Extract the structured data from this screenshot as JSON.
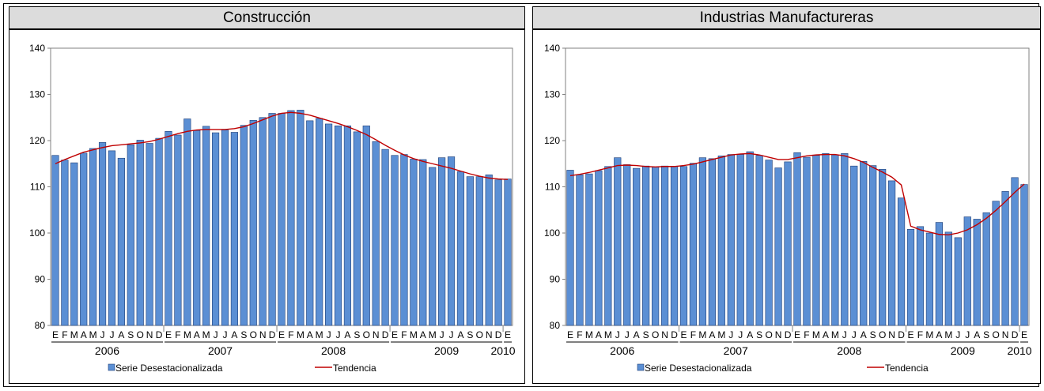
{
  "chart_data": [
    {
      "type": "bar",
      "title": "Construcción",
      "ylim": [
        80,
        140
      ],
      "yticks": [
        80,
        90,
        100,
        110,
        120,
        130,
        140
      ],
      "month_labels": [
        "E",
        "F",
        "M",
        "A",
        "M",
        "J",
        "J",
        "A",
        "S",
        "O",
        "N",
        "D",
        "E",
        "F",
        "M",
        "A",
        "M",
        "J",
        "J",
        "A",
        "S",
        "O",
        "N",
        "D",
        "E",
        "F",
        "M",
        "A",
        "M",
        "J",
        "J",
        "A",
        "S",
        "O",
        "N",
        "D",
        "E",
        "F",
        "M",
        "A",
        "M",
        "J",
        "J",
        "A",
        "S",
        "O",
        "N",
        "D",
        "E"
      ],
      "year_labels": [
        "2006",
        "2007",
        "2008",
        "2009",
        "2010"
      ],
      "legend": {
        "bars": "Serie Desestacionalizada",
        "line": "Tendencia",
        "position": "bottom"
      },
      "grid": false,
      "colors": {
        "bar": "#5b8fd4",
        "bar_edge": "#1f3f77",
        "line": "#c00000"
      },
      "series": [
        {
          "name": "Serie Desestacionalizada",
          "values": [
            116.8,
            115.8,
            115.2,
            117.3,
            118.3,
            119.6,
            117.8,
            116.2,
            119.1,
            120.1,
            119.4,
            120.5,
            122.0,
            121.2,
            124.7,
            122.2,
            123.1,
            121.7,
            122.3,
            121.8,
            123.3,
            124.4,
            125.0,
            125.9,
            125.9,
            126.5,
            126.6,
            124.3,
            124.8,
            123.6,
            123.2,
            123.2,
            121.9,
            123.2,
            119.8,
            118.1,
            116.8,
            117.0,
            116.0,
            115.9,
            114.2,
            116.3,
            116.5,
            113.3,
            112.2,
            112.2,
            112.6,
            111.5,
            111.7
          ]
        },
        {
          "name": "Tendencia",
          "values": [
            115.0,
            115.9,
            116.7,
            117.5,
            118.0,
            118.5,
            118.9,
            119.1,
            119.3,
            119.5,
            119.8,
            120.3,
            120.9,
            121.5,
            122.0,
            122.3,
            122.4,
            122.4,
            122.4,
            122.6,
            123.0,
            123.7,
            124.5,
            125.3,
            125.9,
            126.1,
            125.9,
            125.5,
            124.9,
            124.3,
            123.7,
            123.0,
            122.2,
            121.3,
            120.2,
            119.0,
            117.9,
            116.9,
            116.1,
            115.5,
            115.0,
            114.5,
            114.0,
            113.4,
            112.8,
            112.3,
            111.9,
            111.7,
            111.6
          ]
        }
      ]
    },
    {
      "type": "bar",
      "title": "Industrias Manufactureras",
      "ylim": [
        80,
        140
      ],
      "yticks": [
        80,
        90,
        100,
        110,
        120,
        130,
        140
      ],
      "month_labels": [
        "E",
        "F",
        "M",
        "A",
        "M",
        "J",
        "J",
        "A",
        "S",
        "O",
        "N",
        "D",
        "E",
        "F",
        "M",
        "A",
        "M",
        "J",
        "J",
        "A",
        "S",
        "O",
        "N",
        "D",
        "E",
        "F",
        "M",
        "A",
        "M",
        "J",
        "J",
        "A",
        "S",
        "O",
        "N",
        "D",
        "E",
        "F",
        "M",
        "A",
        "M",
        "J",
        "J",
        "A",
        "S",
        "O",
        "N",
        "D",
        "E"
      ],
      "year_labels": [
        "2006",
        "2007",
        "2008",
        "2009",
        "2010"
      ],
      "legend": {
        "bars": "Serie Desestacionalizada",
        "line": "Tendencia",
        "position": "bottom"
      },
      "grid": false,
      "colors": {
        "bar": "#5b8fd4",
        "bar_edge": "#1f3f77",
        "line": "#c00000"
      },
      "series": [
        {
          "name": "Serie Desestacionalizada",
          "values": [
            113.6,
            112.6,
            112.8,
            113.5,
            114.4,
            116.3,
            114.8,
            114.0,
            114.5,
            114.3,
            114.5,
            114.4,
            114.4,
            115.1,
            116.3,
            116.1,
            116.7,
            117.0,
            117.0,
            117.6,
            116.8,
            115.8,
            114.1,
            115.4,
            117.4,
            116.4,
            116.8,
            117.2,
            116.9,
            117.2,
            114.5,
            115.5,
            114.6,
            113.8,
            111.3,
            107.6,
            100.8,
            101.4,
            100.0,
            102.3,
            100.2,
            99.0,
            103.5,
            103.0,
            104.4,
            106.9,
            109.0,
            112.0,
            110.5
          ]
        },
        {
          "name": "Tendencia",
          "values": [
            112.4,
            112.7,
            113.1,
            113.6,
            114.1,
            114.6,
            114.7,
            114.6,
            114.4,
            114.3,
            114.4,
            114.4,
            114.6,
            114.9,
            115.4,
            115.9,
            116.4,
            116.9,
            117.1,
            117.2,
            116.9,
            116.4,
            115.9,
            115.9,
            116.3,
            116.7,
            116.9,
            117.0,
            117.0,
            116.7,
            116.1,
            115.3,
            114.2,
            113.2,
            112.1,
            110.4,
            101.5,
            100.7,
            100.2,
            99.7,
            99.6,
            100.0,
            100.7,
            101.8,
            103.2,
            104.9,
            106.8,
            108.8,
            110.6
          ]
        }
      ]
    }
  ]
}
